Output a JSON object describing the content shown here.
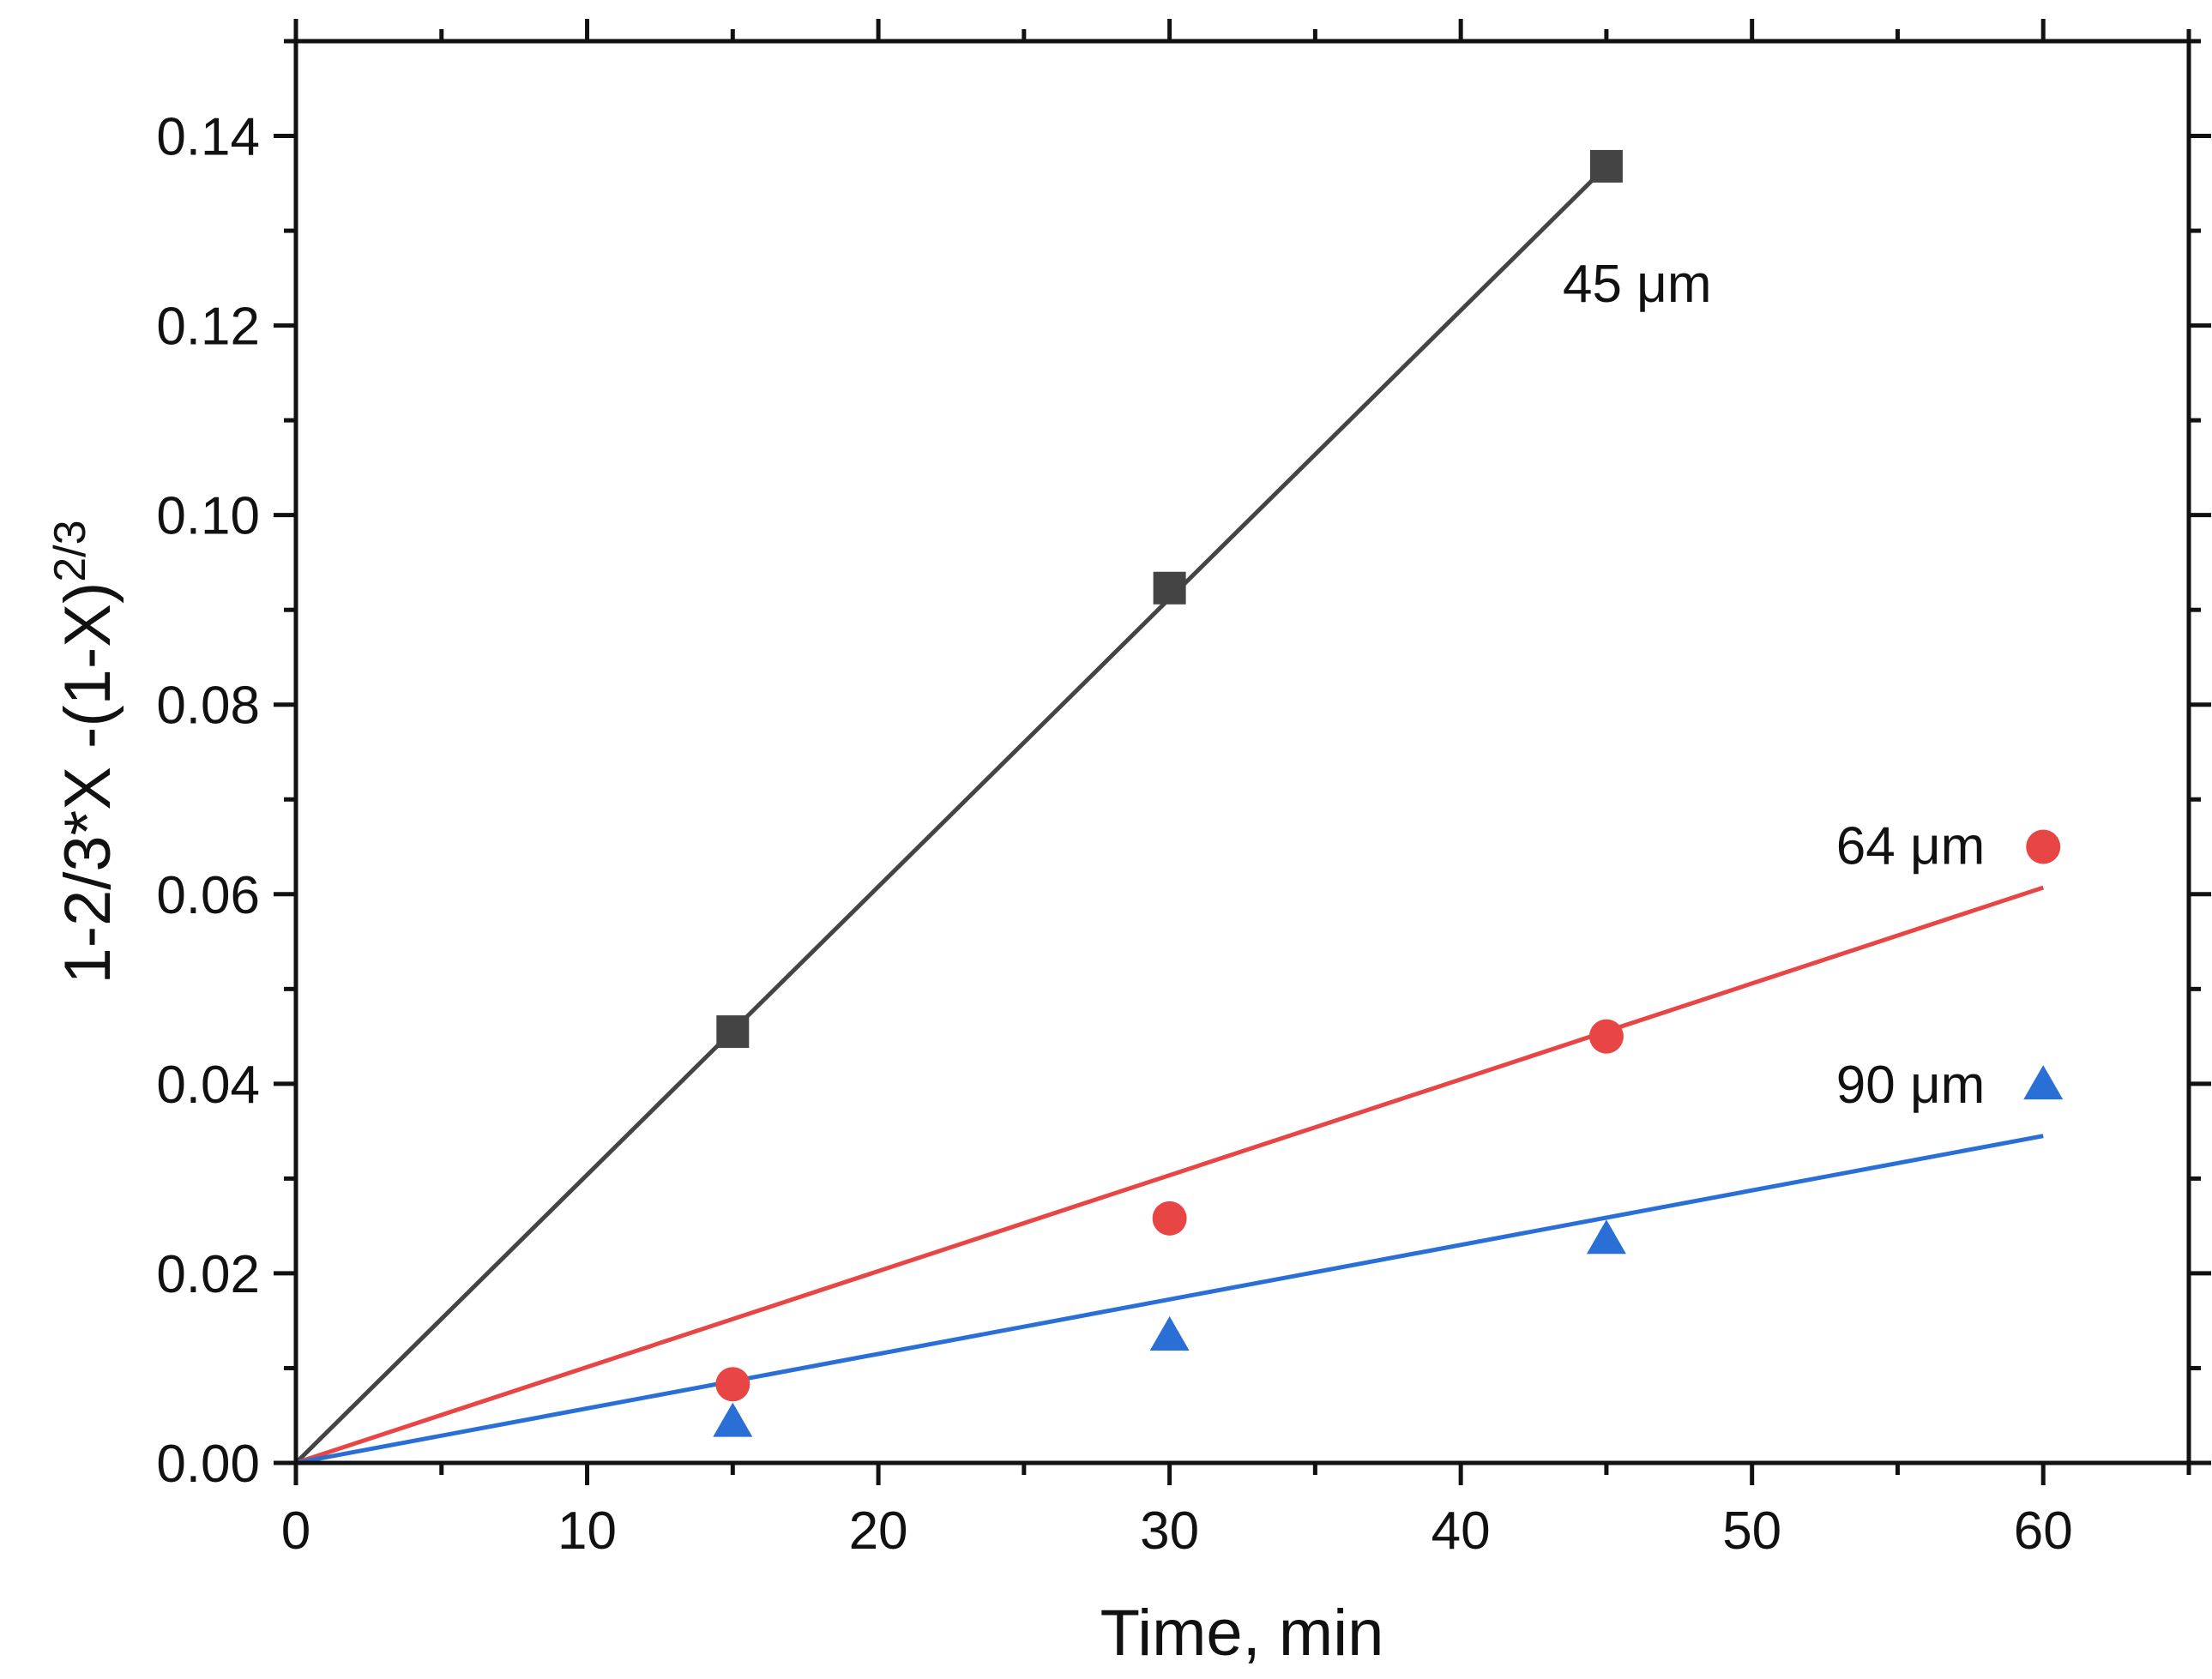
{
  "chart_data": {
    "type": "scatter",
    "title": "",
    "xlabel": "Time, min",
    "ylabel": "1-2/3*X -(1-X)",
    "ylabel_superscript": "2/3",
    "xlim": [
      0,
      65
    ],
    "ylim": [
      0,
      0.15
    ],
    "xticks": [
      "0",
      "10",
      "20",
      "30",
      "40",
      "50",
      "60"
    ],
    "xtick_values": [
      0,
      10,
      20,
      30,
      40,
      50,
      60
    ],
    "yticks": [
      "0.00",
      "0.02",
      "0.04",
      "0.06",
      "0.08",
      "0.10",
      "0.12",
      "0.14"
    ],
    "ytick_values": [
      0,
      0.02,
      0.04,
      0.06,
      0.08,
      0.1,
      0.12,
      0.14
    ],
    "grid": false,
    "series": [
      {
        "name": "45 μm",
        "marker": "square",
        "color": "#444444",
        "x": [
          15,
          30,
          45
        ],
        "y": [
          0.0455,
          0.0923,
          0.1368
        ],
        "fit": {
          "x": [
            0,
            45
          ],
          "y": [
            0,
            0.1368
          ]
        },
        "label_anchor": {
          "x": 43.5,
          "y": 0.1225
        }
      },
      {
        "name": "64 μm",
        "marker": "circle",
        "color": "#e84545",
        "x": [
          15,
          30,
          45,
          60
        ],
        "y": [
          0.0083,
          0.0258,
          0.045,
          0.065
        ],
        "fit": {
          "x": [
            0,
            60
          ],
          "y": [
            0,
            0.0607
          ]
        },
        "label_anchor": {
          "x": 58.0,
          "y": 0.0632
        }
      },
      {
        "name": "90 μm",
        "marker": "triangle",
        "color": "#2a6fd6",
        "x": [
          15,
          30,
          45,
          60
        ],
        "y": [
          0.0042,
          0.0133,
          0.0235,
          0.0398
        ],
        "fit": {
          "x": [
            0,
            60
          ],
          "y": [
            0,
            0.0345
          ]
        },
        "label_anchor": {
          "x": 58.0,
          "y": 0.038
        }
      }
    ]
  }
}
